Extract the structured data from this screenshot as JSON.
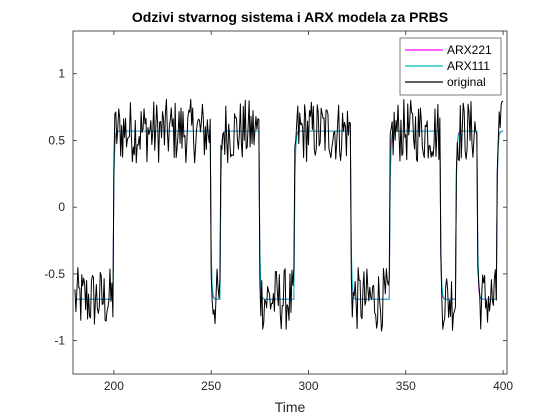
{
  "chart_data": {
    "type": "line",
    "title": "Odzivi stvarnog sistema i ARX modela za PRBS",
    "xlabel": "Time",
    "ylabel": "",
    "xlim": [
      179,
      402
    ],
    "ylim": [
      -1.25,
      1.32
    ],
    "x_ticks": [
      200,
      250,
      300,
      350,
      400
    ],
    "x_tick_labels": [
      "200",
      "250",
      "300",
      "350",
      "400"
    ],
    "y_ticks": [
      1,
      0.5,
      0,
      -0.5,
      -1
    ],
    "y_tick_labels": [
      "1",
      "0.5",
      "0",
      "-0.5",
      "-1"
    ],
    "grid": false,
    "legend_position": "top-right",
    "prbs_levels": {
      "high": 0.57,
      "low": -0.69
    },
    "prbs_switch_times": [
      200,
      250,
      255,
      275,
      293,
      322,
      342,
      368,
      376,
      387,
      397
    ],
    "prbs_initial_level": "low",
    "time_range": [
      180,
      400
    ],
    "noise_amplitude": 0.15,
    "series": [
      {
        "name": "ARX221",
        "color": "#ff00ff",
        "kind": "model"
      },
      {
        "name": "ARX111",
        "color": "#00bfbf",
        "kind": "model"
      },
      {
        "name": "original",
        "color": "#000000",
        "kind": "measured"
      }
    ]
  }
}
